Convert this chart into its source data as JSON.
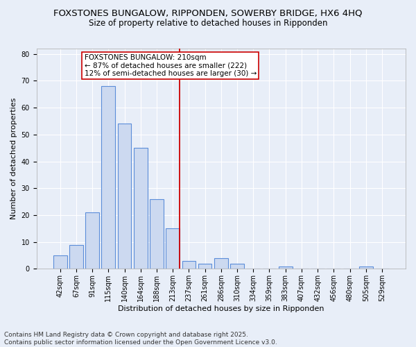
{
  "title_line1": "FOXSTONES BUNGALOW, RIPPONDEN, SOWERBY BRIDGE, HX6 4HQ",
  "title_line2": "Size of property relative to detached houses in Ripponden",
  "xlabel": "Distribution of detached houses by size in Ripponden",
  "ylabel": "Number of detached properties",
  "categories": [
    "42sqm",
    "67sqm",
    "91sqm",
    "115sqm",
    "140sqm",
    "164sqm",
    "188sqm",
    "213sqm",
    "237sqm",
    "261sqm",
    "286sqm",
    "310sqm",
    "334sqm",
    "359sqm",
    "383sqm",
    "407sqm",
    "432sqm",
    "456sqm",
    "480sqm",
    "505sqm",
    "529sqm"
  ],
  "values": [
    5,
    9,
    21,
    68,
    54,
    45,
    26,
    15,
    3,
    2,
    4,
    2,
    0,
    0,
    1,
    0,
    0,
    0,
    0,
    1,
    0
  ],
  "bar_color": "#ccd9f0",
  "bar_edge_color": "#5b8dd9",
  "bar_edge_width": 0.8,
  "vline_color": "#cc0000",
  "vline_x_index": 7,
  "annotation_text_line1": "FOXSTONES BUNGALOW: 210sqm",
  "annotation_text_line2": "← 87% of detached houses are smaller (222)",
  "annotation_text_line3": "12% of semi-detached houses are larger (30) →",
  "annotation_box_color": "#ffffff",
  "annotation_box_edge_color": "#cc0000",
  "ylim": [
    0,
    82
  ],
  "yticks": [
    0,
    10,
    20,
    30,
    40,
    50,
    60,
    70,
    80
  ],
  "background_color": "#e8eef8",
  "grid_color": "#ffffff",
  "footer_line1": "Contains HM Land Registry data © Crown copyright and database right 2025.",
  "footer_line2": "Contains public sector information licensed under the Open Government Licence v3.0.",
  "title_fontsize": 9.5,
  "subtitle_fontsize": 8.5,
  "axis_label_fontsize": 8,
  "tick_fontsize": 7,
  "annotation_fontsize": 7.5,
  "footer_fontsize": 6.5
}
